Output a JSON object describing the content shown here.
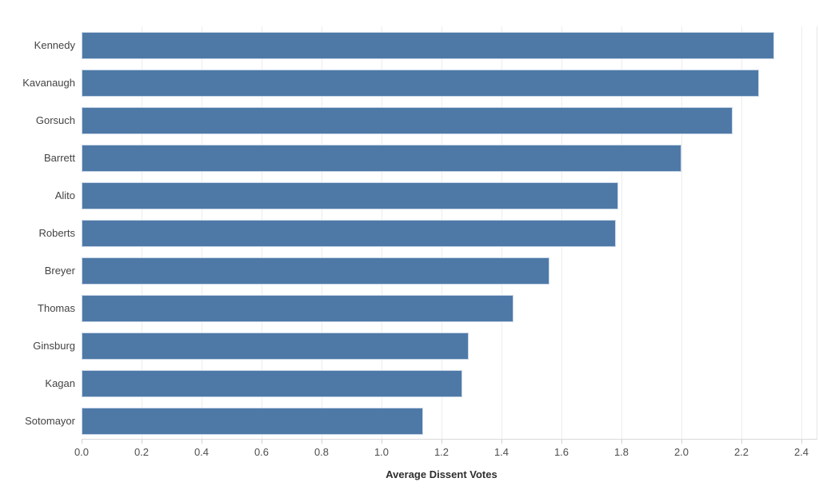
{
  "chart_data": {
    "type": "bar",
    "orientation": "horizontal",
    "title": "",
    "categories": [
      "Kennedy",
      "Kavanaugh",
      "Gorsuch",
      "Barrett",
      "Alito",
      "Roberts",
      "Breyer",
      "Thomas",
      "Ginsburg",
      "Kagan",
      "Sotomayor"
    ],
    "values": [
      2.31,
      2.26,
      2.17,
      2.0,
      1.79,
      1.78,
      1.56,
      1.44,
      1.29,
      1.27,
      1.14
    ],
    "xlabel": "Average Dissent Votes",
    "ylabel": "",
    "xlim": [
      0,
      2.45
    ],
    "xtick_values": [
      0.0,
      0.2,
      0.4,
      0.6,
      0.8,
      1.0,
      1.2,
      1.4,
      1.6,
      1.8,
      2.0,
      2.2,
      2.4
    ],
    "xtick_labels": [
      "0.0",
      "0.2",
      "0.4",
      "0.6",
      "0.8",
      "1.0",
      "1.2",
      "1.4",
      "1.6",
      "1.8",
      "2.0",
      "2.2",
      "2.4"
    ],
    "grid": "vertical-only",
    "legend": "none",
    "sort_order": "descending",
    "colors": {
      "bar_fill": "#4e79a7",
      "bar_border": "#c7d5e6",
      "gridline": "#ededed",
      "pane_border": "#e6e6e6",
      "axis_line": "#d9d9d9",
      "tick_mark": "#d2d2d2",
      "category_text": "#434343",
      "tick_text": "#4e4e4e",
      "axis_title_text": "#2e2e2e"
    }
  },
  "icons": {
    "axis_sort": "sort-descending-icon"
  }
}
